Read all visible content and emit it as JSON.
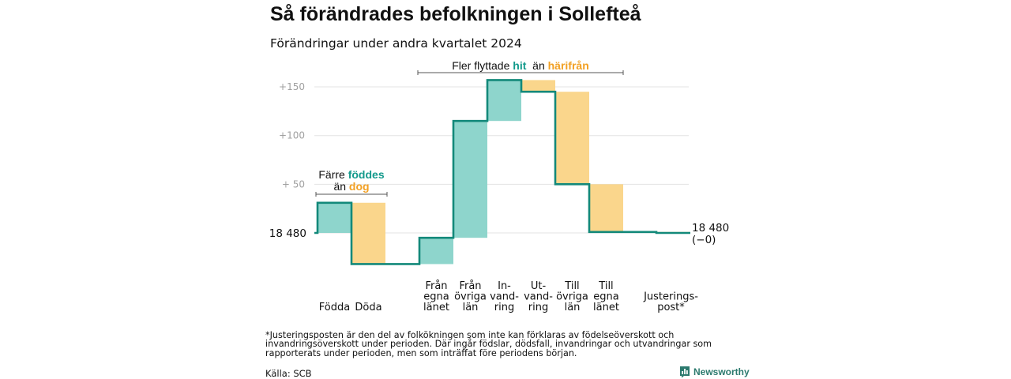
{
  "title": "Så förändrades befolkningen i Sollefteå",
  "subtitle": "Förändringar under andra kvartalet 2024",
  "colors": {
    "increase": "#8ed5cc",
    "decrease": "#fad68c",
    "line": "#13897a",
    "teal_text": "#139a8c",
    "orange_text": "#f2a023",
    "grid": "#e3e3e3"
  },
  "chart_data": {
    "type": "waterfall",
    "title": "Så förändrades befolkningen i Sollefteå",
    "subtitle": "Förändringar under andra kvartalet 2024",
    "baseline_value": 18480,
    "baseline_label": "18  480",
    "yticks": [
      {
        "value": 150,
        "label": "+150"
      },
      {
        "value": 100,
        "label": "+100"
      },
      {
        "value": 50,
        "label": "+  50"
      }
    ],
    "ylim": [
      -40,
      165
    ],
    "grid": true,
    "steps": [
      {
        "label": "Födda",
        "lines": [
          "Födda"
        ],
        "change": 31
      },
      {
        "label": "Döda",
        "lines": [
          "Döda"
        ],
        "change": -63
      },
      {
        "label": "Från egna länet",
        "lines": [
          "Från",
          "egna",
          "länet"
        ],
        "change": 27
      },
      {
        "label": "Från övriga län",
        "lines": [
          "Från",
          "övriga",
          "län"
        ],
        "change": 120
      },
      {
        "label": "In-vandring",
        "lines": [
          "In-",
          "vand-",
          "ring"
        ],
        "change": 42
      },
      {
        "label": "Ut-vandring",
        "lines": [
          "Ut-",
          "vand-",
          "ring"
        ],
        "change": -12
      },
      {
        "label": "Till övriga län",
        "lines": [
          "Till",
          "övriga",
          "län"
        ],
        "change": -95
      },
      {
        "label": "Till egna länet",
        "lines": [
          "Till",
          "egna",
          "länet"
        ],
        "change": -49
      },
      {
        "label": "Justeringspost*",
        "lines": [
          "Justerings-",
          "post*"
        ],
        "change": -1
      }
    ],
    "end_label": [
      "18 480",
      "(−0)"
    ],
    "annotations": [
      {
        "lines": [
          [
            {
              "text": "Färre ",
              "style": "plain"
            },
            {
              "text": "föddes",
              "style": "teal"
            }
          ],
          [
            {
              "text": "än ",
              "style": "plain"
            },
            {
              "text": "dog",
              "style": "orange"
            }
          ]
        ]
      },
      {
        "lines": [
          [
            {
              "text": "Fler flyttade ",
              "style": "plain"
            },
            {
              "text": "hit",
              "style": "teal"
            },
            {
              "text": "  än ",
              "style": "plain"
            },
            {
              "text": "härifrån",
              "style": "orange"
            }
          ]
        ]
      }
    ]
  },
  "footnote": "*Justeringsposten är den del av folkökningen som inte kan förklaras av födelseöverskott och invandringsöverskott under perioden. Där ingår födslar, dödsfall, invandringar och utvandringar som rapporterats under perioden, men som inträffat före periodens början.",
  "source": "Källa: SCB",
  "brand": {
    "name": "Newsworthy",
    "icon": "bar-chart-logo-icon"
  }
}
